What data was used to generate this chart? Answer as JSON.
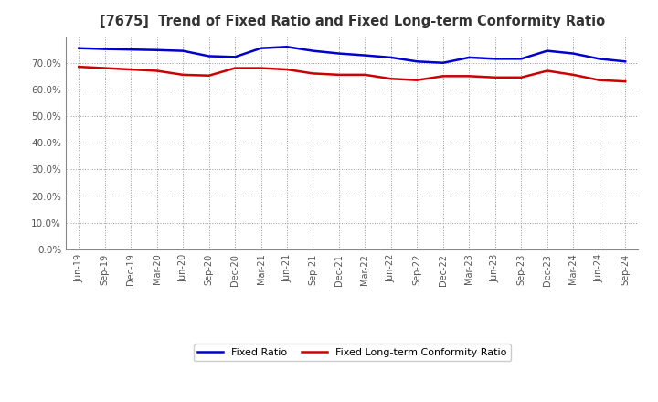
{
  "title": "[7675]  Trend of Fixed Ratio and Fixed Long-term Conformity Ratio",
  "x_labels": [
    "Jun-19",
    "Sep-19",
    "Dec-19",
    "Mar-20",
    "Jun-20",
    "Sep-20",
    "Dec-20",
    "Mar-21",
    "Jun-21",
    "Sep-21",
    "Dec-21",
    "Mar-22",
    "Jun-22",
    "Sep-22",
    "Dec-22",
    "Mar-23",
    "Jun-23",
    "Sep-23",
    "Dec-23",
    "Mar-24",
    "Jun-24",
    "Sep-24"
  ],
  "fixed_ratio": [
    75.5,
    75.2,
    75.0,
    74.8,
    74.5,
    72.5,
    72.2,
    75.5,
    76.0,
    74.5,
    73.5,
    72.8,
    72.0,
    70.5,
    70.0,
    72.0,
    71.5,
    71.5,
    74.5,
    73.5,
    71.5,
    70.5
  ],
  "fixed_lt_ratio": [
    68.5,
    68.0,
    67.5,
    67.0,
    65.5,
    65.2,
    68.0,
    68.0,
    67.5,
    66.0,
    65.5,
    65.5,
    64.0,
    63.5,
    65.0,
    65.0,
    64.5,
    64.5,
    67.0,
    65.5,
    63.5,
    63.0
  ],
  "fixed_ratio_color": "#0000cc",
  "fixed_lt_ratio_color": "#cc0000",
  "ylim": [
    0,
    80
  ],
  "yticks": [
    0,
    10,
    20,
    30,
    40,
    50,
    60,
    70
  ],
  "background_color": "#FFFFFF",
  "grid_color": "#999999"
}
